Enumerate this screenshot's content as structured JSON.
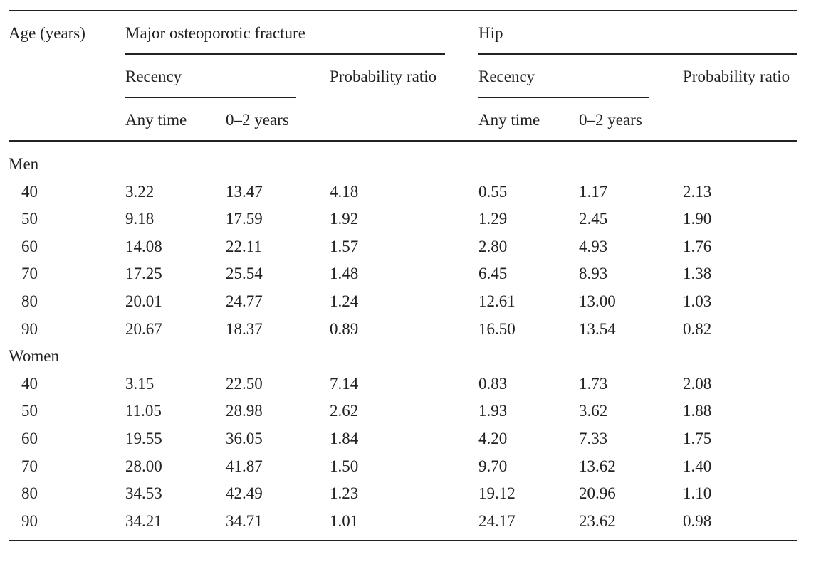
{
  "header": {
    "age_label": "Age (years)",
    "group_mof": "Major osteoporotic fracture",
    "group_hip": "Hip",
    "recency": "Recency",
    "probability_ratio": "Probability ratio",
    "any_time": "Any time",
    "zero_two_years": "0–2 years"
  },
  "sections": [
    {
      "label": "Men",
      "rows": [
        {
          "age": "40",
          "mof_any": "3.22",
          "mof_02": "13.47",
          "mof_ratio": "4.18",
          "hip_any": "0.55",
          "hip_02": "1.17",
          "hip_ratio": "2.13"
        },
        {
          "age": "50",
          "mof_any": "9.18",
          "mof_02": "17.59",
          "mof_ratio": "1.92",
          "hip_any": "1.29",
          "hip_02": "2.45",
          "hip_ratio": "1.90"
        },
        {
          "age": "60",
          "mof_any": "14.08",
          "mof_02": "22.11",
          "mof_ratio": "1.57",
          "hip_any": "2.80",
          "hip_02": "4.93",
          "hip_ratio": "1.76"
        },
        {
          "age": "70",
          "mof_any": "17.25",
          "mof_02": "25.54",
          "mof_ratio": "1.48",
          "hip_any": "6.45",
          "hip_02": "8.93",
          "hip_ratio": "1.38"
        },
        {
          "age": "80",
          "mof_any": "20.01",
          "mof_02": "24.77",
          "mof_ratio": "1.24",
          "hip_any": "12.61",
          "hip_02": "13.00",
          "hip_ratio": "1.03"
        },
        {
          "age": "90",
          "mof_any": "20.67",
          "mof_02": "18.37",
          "mof_ratio": "0.89",
          "hip_any": "16.50",
          "hip_02": "13.54",
          "hip_ratio": "0.82"
        }
      ]
    },
    {
      "label": "Women",
      "rows": [
        {
          "age": "40",
          "mof_any": "3.15",
          "mof_02": "22.50",
          "mof_ratio": "7.14",
          "hip_any": "0.83",
          "hip_02": "1.73",
          "hip_ratio": "2.08"
        },
        {
          "age": "50",
          "mof_any": "11.05",
          "mof_02": "28.98",
          "mof_ratio": "2.62",
          "hip_any": "1.93",
          "hip_02": "3.62",
          "hip_ratio": "1.88"
        },
        {
          "age": "60",
          "mof_any": "19.55",
          "mof_02": "36.05",
          "mof_ratio": "1.84",
          "hip_any": "4.20",
          "hip_02": "7.33",
          "hip_ratio": "1.75"
        },
        {
          "age": "70",
          "mof_any": "28.00",
          "mof_02": "41.87",
          "mof_ratio": "1.50",
          "hip_any": "9.70",
          "hip_02": "13.62",
          "hip_ratio": "1.40"
        },
        {
          "age": "80",
          "mof_any": "34.53",
          "mof_02": "42.49",
          "mof_ratio": "1.23",
          "hip_any": "19.12",
          "hip_02": "20.96",
          "hip_ratio": "1.10"
        },
        {
          "age": "90",
          "mof_any": "34.21",
          "mof_02": "34.71",
          "mof_ratio": "1.01",
          "hip_any": "24.17",
          "hip_02": "23.62",
          "hip_ratio": "0.98"
        }
      ]
    }
  ]
}
